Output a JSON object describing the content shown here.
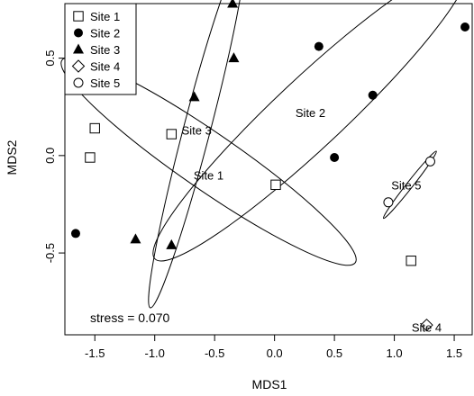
{
  "chart_data": {
    "type": "scatter",
    "xlabel": "MDS1",
    "ylabel": "MDS2",
    "xlim": [
      -1.75,
      1.65
    ],
    "ylim": [
      -0.92,
      0.78
    ],
    "xticks": [
      -1.5,
      -1.0,
      -0.5,
      0.0,
      0.5,
      1.0,
      1.5
    ],
    "xtick_labels": [
      "-1.5",
      "-1.0",
      "-0.5",
      "0.0",
      "0.5",
      "1.0",
      "1.5"
    ],
    "yticks": [
      -0.5,
      0.0,
      0.5
    ],
    "ytick_labels": [
      "-0.5",
      "0.0",
      "0.5"
    ],
    "legend_position": "top-left",
    "stress_label": "stress = 0.070",
    "series": [
      {
        "name": "Site 1",
        "marker": "open-square",
        "points": [
          [
            -1.5,
            0.14
          ],
          [
            -1.54,
            -0.01
          ],
          [
            -0.86,
            0.11
          ],
          [
            0.01,
            -0.15
          ],
          [
            1.14,
            -0.54
          ]
        ]
      },
      {
        "name": "Site 2",
        "marker": "filled-circle",
        "points": [
          [
            -1.66,
            -0.4
          ],
          [
            0.37,
            0.56
          ],
          [
            0.5,
            -0.01
          ],
          [
            0.82,
            0.31
          ],
          [
            1.59,
            0.66
          ]
        ]
      },
      {
        "name": "Site 3",
        "marker": "filled-triangle",
        "points": [
          [
            -0.35,
            0.78
          ],
          [
            -0.34,
            0.5
          ],
          [
            -0.67,
            0.3
          ],
          [
            -1.16,
            -0.43
          ],
          [
            -0.86,
            -0.46
          ]
        ]
      },
      {
        "name": "Site 4",
        "marker": "open-diamond",
        "points": [
          [
            1.27,
            -0.87
          ]
        ]
      },
      {
        "name": "Site 5",
        "marker": "open-circle",
        "points": [
          [
            1.3,
            -0.03
          ],
          [
            0.95,
            -0.24
          ]
        ]
      }
    ],
    "ellipses": [
      {
        "label": "Site 1",
        "label_at": [
          -0.55,
          -0.1
        ],
        "center": [
          -0.55,
          -0.03
        ],
        "rx": 1.33,
        "ry": 0.18,
        "angle_deg": -23
      },
      {
        "label": "Site 2",
        "label_at": [
          0.3,
          0.22
        ],
        "center": [
          0.3,
          0.22
        ],
        "rx": 1.5,
        "ry": 0.22,
        "angle_deg": 30
      },
      {
        "label": "Site 3",
        "label_at": [
          -0.65,
          0.13
        ],
        "center": [
          -0.65,
          0.13
        ],
        "rx": 0.99,
        "ry": 0.085,
        "angle_deg": 67
      },
      {
        "label": "Site 4",
        "label_at": [
          1.27,
          -0.88
        ]
      },
      {
        "label": "Site 5",
        "label_at": [
          1.1,
          -0.15
        ],
        "center": [
          1.13,
          -0.15
        ],
        "rx": 0.28,
        "ry": 0.02,
        "angle_deg": 38
      }
    ]
  }
}
